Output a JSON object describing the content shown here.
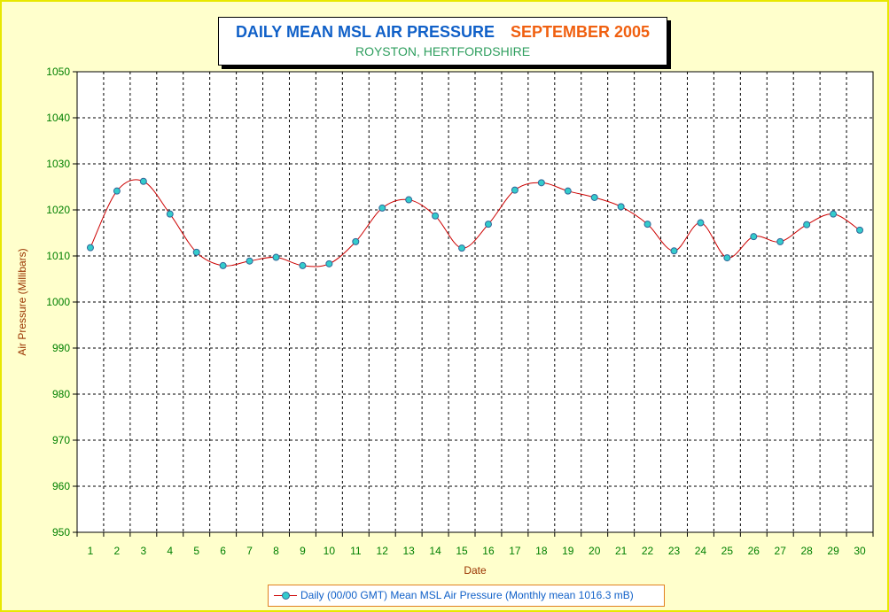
{
  "title": {
    "main": "DAILY MEAN MSL AIR PRESSURE",
    "month": "SEPTEMBER 2005",
    "subtitle": "ROYSTON, HERTFORDSHIRE"
  },
  "legend": {
    "label": "Daily (00/00 GMT) Mean MSL Air Pressure (Monthly mean 1016.3 mB)"
  },
  "colors": {
    "background": "#ffffcc",
    "border": "#e8e800",
    "title_main": "#1060c8",
    "title_month": "#f06010",
    "subtitle": "#2e9e5e",
    "tick_labels": "#008000",
    "axis_titles": "#993300",
    "line": "#cc0000",
    "marker_fill": "#33cccc",
    "marker_edge": "#336699"
  },
  "chart_data": {
    "type": "line",
    "title": "DAILY MEAN MSL AIR PRESSURE  SEPTEMBER 2005",
    "subtitle": "ROYSTON, HERTFORDSHIRE",
    "xlabel": "Date",
    "ylabel": "Air Pressure (Millibars)",
    "x": [
      1,
      2,
      3,
      4,
      5,
      6,
      7,
      8,
      9,
      10,
      11,
      12,
      13,
      14,
      15,
      16,
      17,
      18,
      19,
      20,
      21,
      22,
      23,
      24,
      25,
      26,
      27,
      28,
      29,
      30
    ],
    "ylim": [
      950,
      1050
    ],
    "yticks": [
      950,
      960,
      970,
      980,
      990,
      1000,
      1010,
      1020,
      1030,
      1040,
      1050
    ],
    "grid": true,
    "legend_position": "bottom",
    "series": [
      {
        "name": "Daily (00/00 GMT) Mean MSL Air Pressure (Monthly mean 1016.3 mB)",
        "values": [
          1011.8,
          1024.1,
          1026.2,
          1019.1,
          1010.8,
          1007.9,
          1008.9,
          1009.7,
          1007.9,
          1008.3,
          1013.1,
          1020.4,
          1022.2,
          1018.7,
          1011.7,
          1016.9,
          1024.3,
          1025.9,
          1024.1,
          1022.7,
          1020.7,
          1016.9,
          1011.1,
          1017.2,
          1009.6,
          1014.2,
          1013.1,
          1016.8,
          1019.1,
          1015.6
        ]
      }
    ]
  }
}
